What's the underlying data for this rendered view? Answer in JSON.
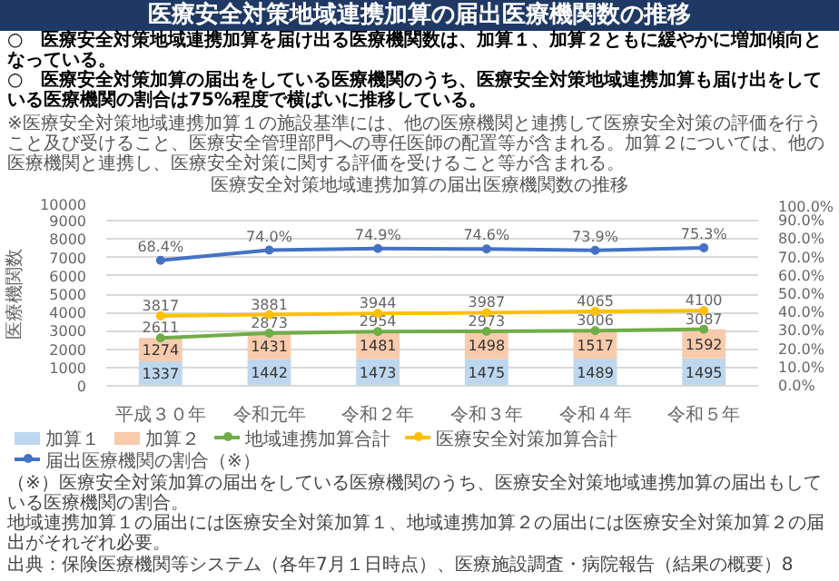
{
  "chart_data": {
    "type": "bar",
    "title": "医療安全対策地域連携加算の届出医療機関数の推移",
    "subtitle": "医療安全対策地域連携加算の届出医療機関数の推移",
    "annotations": [
      "○　医療安全対策地域連携加算を届け出る医療機関数は、加算１、加算２ともに緩やかに増加傾向となっている。",
      "○　医療安全対策加算の届出をしている医療機関のうち、医療安全対策地域連携加算も届け出をしている医療機関の割合は75%程度で横ばいに推移している。",
      "※医療安全対策地域連携加算１の施設基準には、他の医療機関と連携して医療安全対策の評価を行うこと及び受けること、医療安全管理部門への専任医師の配置等が含まれる。加算２については、他の医療機関と連携し、医療安全対策に関する評価を受けること等が含まれる。",
      "（※）医療安全対策加算の届出をしている医療機関のうち、医療安全対策地域連携加算の届出もしている医療機関の割合。",
      "地域連携加算１の届出には医療安全対策加算１、地域連携加算２の届出には医療安全対策加算２の届出がそれぞれ必要。",
      "出典：保険医療機関等システム（各年7月１日時点）、医療施設調査・病院報告（結果の概要）",
      "8"
    ],
    "ylabel": "医療機関数",
    "categories": [
      "平成３０年",
      "令和元年",
      "令和２年",
      "令和３年",
      "令和４年",
      "令和５年"
    ],
    "stacked": true,
    "grid": "y",
    "legend": "bottom",
    "marker": "circle",
    "ylim": [
      0,
      10000
    ],
    "yticks": [
      0,
      1000,
      2000,
      3000,
      4000,
      5000,
      6000,
      7000,
      8000,
      9000,
      10000
    ],
    "y2lim": [
      0,
      100
    ],
    "y2ticks": [
      {
        "value": 0,
        "label": "0.0%"
      },
      {
        "value": 10,
        "label": "10.0%"
      },
      {
        "value": 20,
        "label": "20.0%"
      },
      {
        "value": 30,
        "label": "30.0%"
      },
      {
        "value": 40,
        "label": "40.0%"
      },
      {
        "value": 50,
        "label": "50.0%"
      },
      {
        "value": 60,
        "label": "60.0%"
      },
      {
        "value": 70,
        "label": "70.0%"
      },
      {
        "value": 80,
        "label": "80.0%"
      },
      {
        "value": 90,
        "label": "90.0%"
      },
      {
        "value": 100,
        "label": "100.0%"
      }
    ],
    "series": [
      {
        "name": "加算１",
        "color": "#bdd7ee",
        "values": [
          1337,
          1442,
          1473,
          1475,
          1489,
          1495
        ],
        "value_labels": [
          "1337",
          "1442",
          "1473",
          "1475",
          "1489",
          "1495"
        ]
      },
      {
        "name": "加算２",
        "color": "#f8cbad",
        "values": [
          1274,
          1431,
          1481,
          1498,
          1517,
          1592
        ],
        "value_labels": [
          "1274",
          "1431",
          "1481",
          "1498",
          "1517",
          "1592"
        ]
      },
      {
        "name": "地域連携加算合計",
        "type": "line",
        "color": "#70ad47",
        "values": [
          2611,
          2873,
          2954,
          2973,
          3006,
          3087
        ],
        "value_labels": [
          "2611",
          "2873",
          "2954",
          "2973",
          "3006",
          "3087"
        ]
      },
      {
        "name": "医療安全対策加算合計",
        "type": "line",
        "color": "#ffc000",
        "values": [
          3817,
          3881,
          3944,
          3987,
          4065,
          4100
        ],
        "value_labels": [
          "3817",
          "3881",
          "3944",
          "3987",
          "4065",
          "4100"
        ]
      },
      {
        "name": "届出医療機関の割合（※）",
        "type": "line",
        "axis": "y2",
        "color": "#4472c4",
        "values": [
          68.4,
          74.0,
          74.9,
          74.6,
          73.9,
          75.3
        ],
        "value_labels": [
          "68.4%",
          "74.0%",
          "74.9%",
          "74.6%",
          "73.9%",
          "75.3%"
        ]
      }
    ]
  }
}
